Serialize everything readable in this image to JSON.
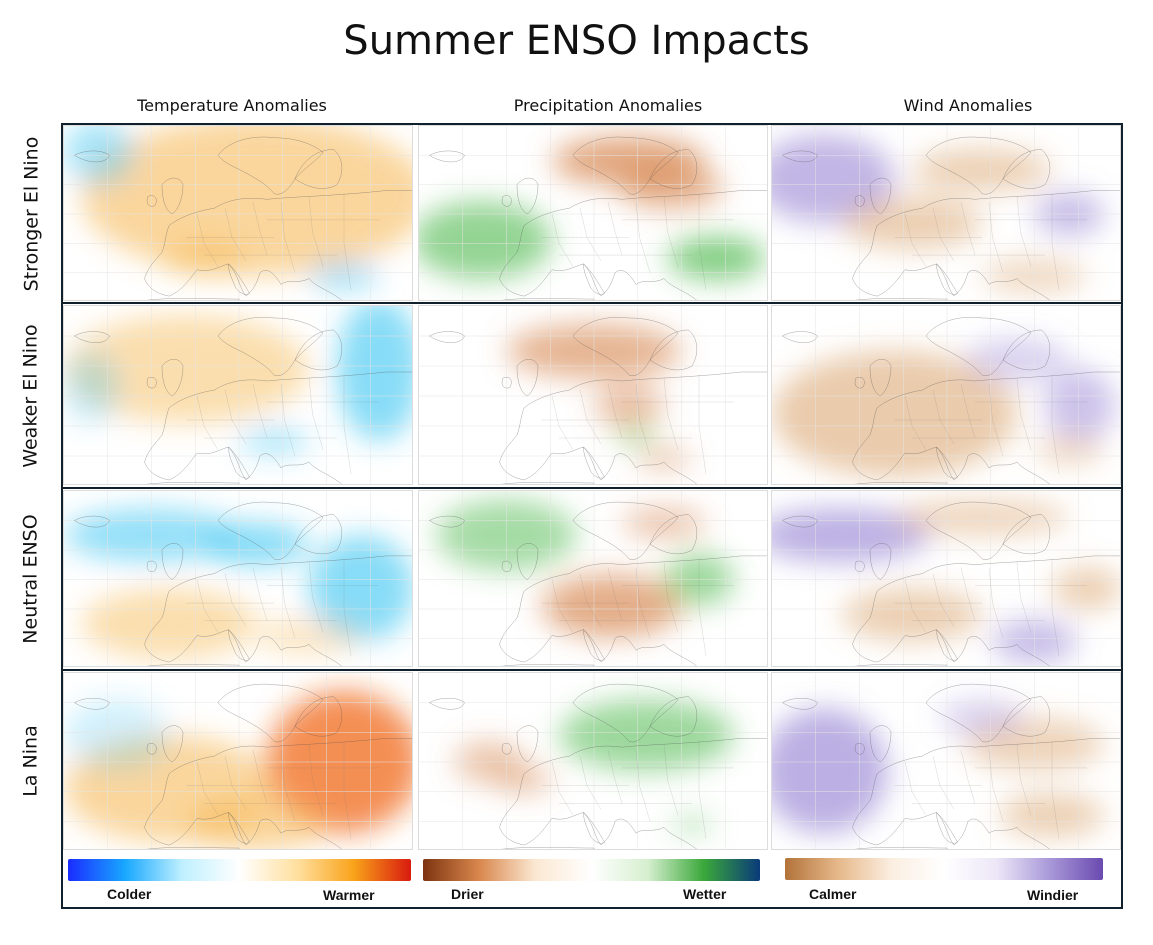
{
  "title": "Summer ENSO Impacts",
  "columns": [
    "Temperature Anomalies",
    "Precipitation Anomalies",
    "Wind Anomalies"
  ],
  "rows": [
    "Stronger El Nino",
    "Weaker El Nino",
    "Neutral ENSO",
    "La Nina"
  ],
  "legend": {
    "temperature": {
      "low": "Colder",
      "high": "Warmer",
      "colors": [
        "#1a2cff",
        "#19a8ff",
        "#bff0ff",
        "#ffffff",
        "#ffe0a0",
        "#f9a31a",
        "#d81a0e"
      ]
    },
    "precipitation": {
      "low": "Drier",
      "high": "Wetter",
      "colors": [
        "#7d3410",
        "#d9874d",
        "#fbe8d2",
        "#ffffff",
        "#d6efcf",
        "#3aa83a",
        "#0a3a7a"
      ]
    },
    "wind": {
      "low": "Calmer",
      "high": "Windier",
      "colors": [
        "#b2733a",
        "#e6b88a",
        "#fbeee0",
        "#ffffff",
        "#ece6f7",
        "#a898d8",
        "#6a4ab0"
      ]
    }
  },
  "map_colors": {
    "coastline": "#4a4a4a",
    "warm": "#f6b54a",
    "hot": "#f06a1a",
    "cold": "#38c4f2",
    "dry": "#d5824a",
    "wet": "#4cb84c",
    "calm": "#d9a066",
    "windy": "#8e7ad0"
  }
}
